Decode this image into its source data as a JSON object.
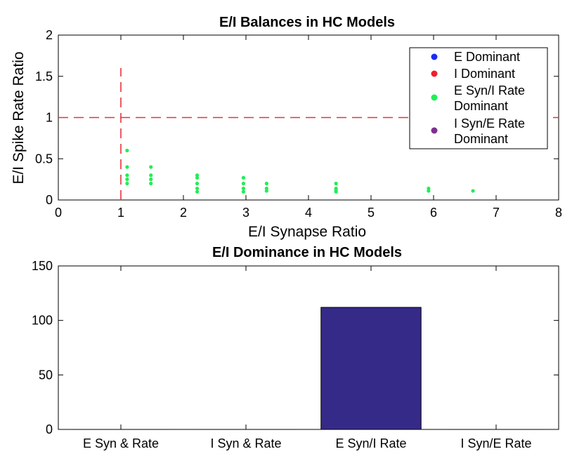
{
  "chart_data": [
    {
      "type": "scatter",
      "title": "E/I Balances in HC Models",
      "xlabel": "E/I Synapse Ratio",
      "ylabel": "E/I Spike Rate Ratio",
      "xlim": [
        0,
        8
      ],
      "ylim": [
        0,
        2
      ],
      "xticks": [
        "0",
        "1",
        "2",
        "3",
        "4",
        "5",
        "6",
        "7",
        "8"
      ],
      "yticks": [
        "0",
        "0.5",
        "1",
        "1.5",
        "2"
      ],
      "reference_lines": [
        {
          "orientation": "horizontal",
          "value": 1,
          "color": "#e8333c",
          "style": "dashed"
        },
        {
          "orientation": "vertical",
          "value": 1,
          "y_end": 1.6,
          "color": "#e8333c",
          "style": "dashed"
        }
      ],
      "legend_placement": "top-right",
      "series": [
        {
          "name": "E Dominant",
          "color": "#1b2cf5",
          "points": []
        },
        {
          "name": "I Dominant",
          "color": "#f0202a",
          "points": []
        },
        {
          "name": "E Syn/I Rate Dominant",
          "color": "#22ee55",
          "points": [
            [
              1.1,
              0.6
            ],
            [
              1.1,
              0.4
            ],
            [
              1.1,
              0.3
            ],
            [
              1.1,
              0.25
            ],
            [
              1.1,
              0.2
            ],
            [
              1.48,
              0.4
            ],
            [
              1.48,
              0.3
            ],
            [
              1.48,
              0.25
            ],
            [
              1.48,
              0.2
            ],
            [
              2.22,
              0.3
            ],
            [
              2.22,
              0.27
            ],
            [
              2.22,
              0.2
            ],
            [
              2.22,
              0.14
            ],
            [
              2.22,
              0.1
            ],
            [
              2.96,
              0.27
            ],
            [
              2.96,
              0.2
            ],
            [
              2.96,
              0.14
            ],
            [
              2.96,
              0.1
            ],
            [
              3.33,
              0.2
            ],
            [
              3.33,
              0.14
            ],
            [
              3.33,
              0.11
            ],
            [
              4.44,
              0.2
            ],
            [
              4.44,
              0.14
            ],
            [
              4.44,
              0.12
            ],
            [
              4.44,
              0.1
            ],
            [
              5.92,
              0.14
            ],
            [
              5.92,
              0.11
            ],
            [
              6.63,
              0.11
            ]
          ]
        },
        {
          "name": "I Syn/E Rate Dominant",
          "color": "#7e2f8e",
          "points": []
        }
      ]
    },
    {
      "type": "bar",
      "title": "E/I Dominance in HC Models",
      "categories": [
        "E Syn & Rate",
        "I Syn & Rate",
        "E Syn/I Rate",
        "I Syn/E Rate"
      ],
      "values": [
        0,
        0,
        112,
        0
      ],
      "ylim": [
        0,
        150
      ],
      "yticks": [
        "0",
        "50",
        "100",
        "150"
      ],
      "bar_color": "#352a87",
      "xlabel": "",
      "ylabel": ""
    }
  ]
}
